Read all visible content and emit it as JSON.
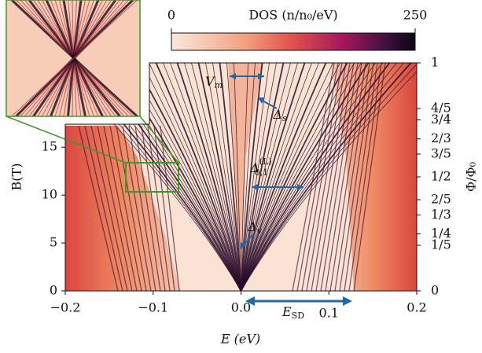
{
  "chart_data": {
    "type": "heatmap",
    "xlabel": "E (eV)",
    "ylabel": "B(T)",
    "y2label": "Φ/Φ₀",
    "xlim": [
      -0.2,
      0.2
    ],
    "xticks": [
      {
        "value": -0.2,
        "label": "−0.2"
      },
      {
        "value": -0.1,
        "label": "−0.1"
      },
      {
        "value": 0,
        "label": "0.0"
      },
      0.1,
      0.2
    ],
    "ylim": [
      0,
      23.8
    ],
    "yticks": [
      0,
      5,
      10,
      15
    ],
    "y2lim": [
      0,
      1
    ],
    "y2ticks": [
      0,
      {
        "value": 0.2,
        "label": "1/5"
      },
      {
        "value": 0.25,
        "label": "1/4"
      },
      {
        "value": 0.3333,
        "label": "1/3"
      },
      {
        "value": 0.4,
        "label": "2/5"
      },
      {
        "value": 0.5,
        "label": "1/2"
      },
      {
        "value": 0.6,
        "label": "3/5"
      },
      {
        "value": 0.6667,
        "label": "2/3"
      },
      {
        "value": 0.75,
        "label": "3/4"
      },
      {
        "value": 0.8,
        "label": "4/5"
      },
      1
    ],
    "colorbar": {
      "label": "DOS (n/n₀/eV)",
      "clim": [
        0,
        250
      ],
      "ticks": [
        0,
        250
      ]
    },
    "annotations": [
      {
        "text": "V",
        "sub": "m"
      },
      {
        "text": "Δ",
        "sub": "s"
      },
      {
        "text": "Δ",
        "sup": "(L)",
        "sub": "0,1"
      },
      {
        "text": "Δ",
        "sub": "v"
      },
      {
        "text": "E",
        "sub": "SD"
      }
    ]
  }
}
